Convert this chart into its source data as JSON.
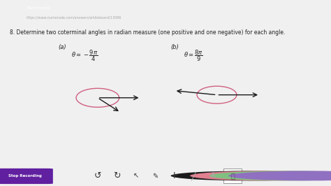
{
  "bg_color": "#f0f0f0",
  "browser_bar_color": "#3c3c3c",
  "page_bg": "#ffffff",
  "title_text": "8. Determine two coterminal angles in radian measure (one positive and one negative) for each angle.",
  "label_a": "(a)",
  "label_b": "(b)",
  "theta_a_text": "$\\theta = -\\dfrac{9\\pi}{4}$",
  "theta_b_text": "$\\theta = \\dfrac{8\\pi}{9}$",
  "arc_color": "#d06080",
  "arrow_color": "#1a1a1a",
  "bottom_bar_color": "#e0e0e0",
  "stop_btn_color": "#6020a0",
  "toolbar_colors": [
    "#1a1a1a",
    "#e08090",
    "#80c080",
    "#9070c0"
  ]
}
